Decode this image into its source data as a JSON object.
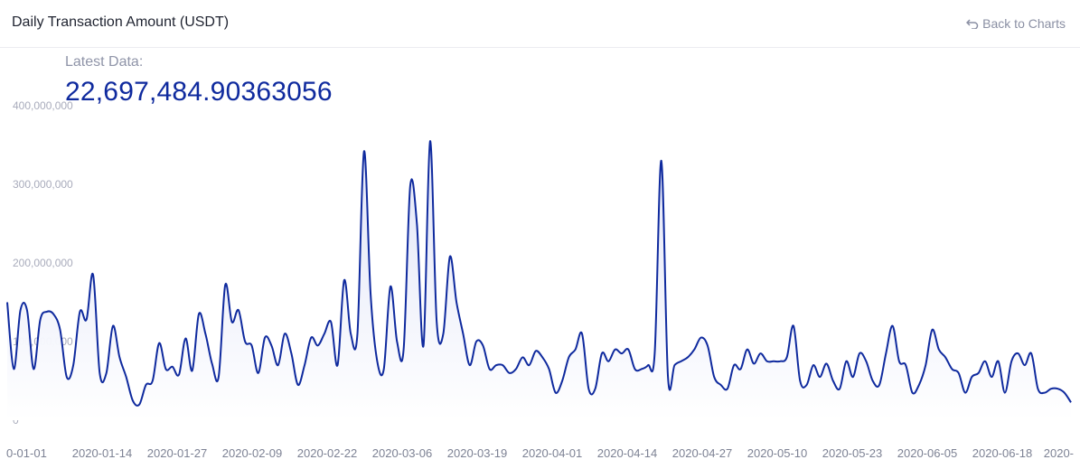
{
  "header": {
    "title": "Daily Transaction Amount (USDT)",
    "back_label": "Back to Charts",
    "back_icon": "return-arrow-icon"
  },
  "latest": {
    "label": "Latest Data:",
    "value": "22,697,484.90363056"
  },
  "colors": {
    "line": "#0f2a9e",
    "area_top": "#dfe3f7",
    "area_bottom": "#ffffff"
  },
  "chart_data": {
    "type": "area",
    "title": "Daily Transaction Amount (USDT)",
    "xlabel": "",
    "ylabel": "",
    "ylim": [
      0,
      400000000
    ],
    "yticks": [
      0,
      100000000,
      200000000,
      300000000,
      400000000
    ],
    "ytick_labels": [
      "0",
      "100,000,000",
      "200,000,000",
      "300,000,000",
      "400,000,000"
    ],
    "xtick_labels": [
      "0-01-01",
      "2020-01-14",
      "2020-01-27",
      "2020-02-09",
      "2020-02-22",
      "2020-03-06",
      "2020-03-19",
      "2020-04-01",
      "2020-04-14",
      "2020-04-27",
      "2020-05-10",
      "2020-05-23",
      "2020-06-05",
      "2020-06-18",
      "2020-"
    ],
    "grid": false,
    "legend": "none",
    "series": [
      {
        "values": [
          150000000,
          65000000,
          140000000,
          140000000,
          65000000,
          128000000,
          138000000,
          135000000,
          115000000,
          55000000,
          70000000,
          138000000,
          128000000,
          185000000,
          60000000,
          60000000,
          120000000,
          80000000,
          55000000,
          25000000,
          20000000,
          45000000,
          50000000,
          98000000,
          65000000,
          68000000,
          58000000,
          104000000,
          63000000,
          135000000,
          110000000,
          72000000,
          55000000,
          172000000,
          125000000,
          140000000,
          100000000,
          95000000,
          60000000,
          105000000,
          95000000,
          70000000,
          110000000,
          85000000,
          45000000,
          70000000,
          105000000,
          95000000,
          110000000,
          125000000,
          70000000,
          178000000,
          110000000,
          110000000,
          342000000,
          160000000,
          75000000,
          65000000,
          170000000,
          100000000,
          90000000,
          298000000,
          250000000,
          95000000,
          355000000,
          125000000,
          110000000,
          208000000,
          150000000,
          110000000,
          70000000,
          100000000,
          95000000,
          65000000,
          70000000,
          70000000,
          60000000,
          65000000,
          80000000,
          70000000,
          88000000,
          80000000,
          65000000,
          35000000,
          50000000,
          80000000,
          90000000,
          110000000,
          40000000,
          40000000,
          85000000,
          75000000,
          90000000,
          85000000,
          90000000,
          65000000,
          65000000,
          70000000,
          85000000,
          330000000,
          55000000,
          70000000,
          75000000,
          80000000,
          90000000,
          105000000,
          95000000,
          55000000,
          45000000,
          40000000,
          70000000,
          65000000,
          90000000,
          72000000,
          85000000,
          75000000,
          75000000,
          75000000,
          80000000,
          120000000,
          50000000,
          45000000,
          70000000,
          55000000,
          72000000,
          50000000,
          40000000,
          75000000,
          55000000,
          85000000,
          75000000,
          50000000,
          45000000,
          85000000,
          120000000,
          75000000,
          70000000,
          35000000,
          45000000,
          70000000,
          115000000,
          90000000,
          80000000,
          65000000,
          60000000,
          35000000,
          55000000,
          60000000,
          75000000,
          55000000,
          75000000,
          35000000,
          75000000,
          85000000,
          70000000,
          85000000,
          40000000,
          35000000,
          40000000,
          40000000,
          35000000,
          22697484.90363056
        ]
      }
    ]
  }
}
